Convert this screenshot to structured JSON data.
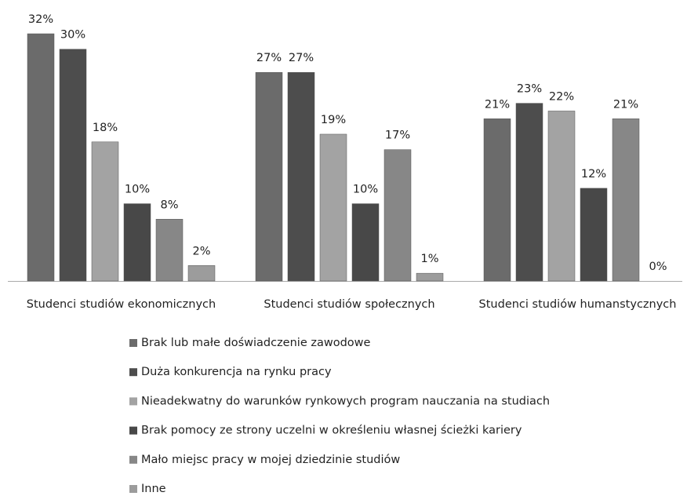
{
  "chart_data": {
    "type": "bar",
    "categories": [
      "Studenci studiów ekonomicznych",
      "Studenci studiów społecznych",
      "Studenci studiów humanstycznych"
    ],
    "series": [
      {
        "name": "Brak lub małe doświadczenie zawodowe",
        "color": "#6b6b6b",
        "values": [
          32,
          27,
          21
        ],
        "value_labels": [
          "32%",
          "27%",
          "21%"
        ]
      },
      {
        "name": "Duża konkurencja na rynku pracy",
        "color": "#4d4d4d",
        "values": [
          30,
          27,
          23
        ],
        "value_labels": [
          "30%",
          "27%",
          "23%"
        ]
      },
      {
        "name": "Nieadekwatny do warunków rynkowych program nauczania na studiach",
        "color": "#a3a3a3",
        "values": [
          18,
          19,
          22
        ],
        "value_labels": [
          "18%",
          "19%",
          "22%"
        ]
      },
      {
        "name": "Brak pomocy ze strony uczelni w określeniu własnej ścieżki kariery",
        "color": "#484848",
        "values": [
          10,
          10,
          12
        ],
        "value_labels": [
          "10%",
          "10%",
          "12%"
        ]
      },
      {
        "name": "Mało miejsc pracy w mojej dziedzinie studiów",
        "color": "#878787",
        "values": [
          8,
          17,
          21
        ],
        "value_labels": [
          "8%",
          "17%",
          "21%"
        ]
      },
      {
        "name": "Inne",
        "color": "#9c9c9c",
        "values": [
          2,
          1,
          0
        ],
        "value_labels": [
          "2%",
          "1%",
          "0%"
        ]
      }
    ],
    "legend": "bottom"
  }
}
